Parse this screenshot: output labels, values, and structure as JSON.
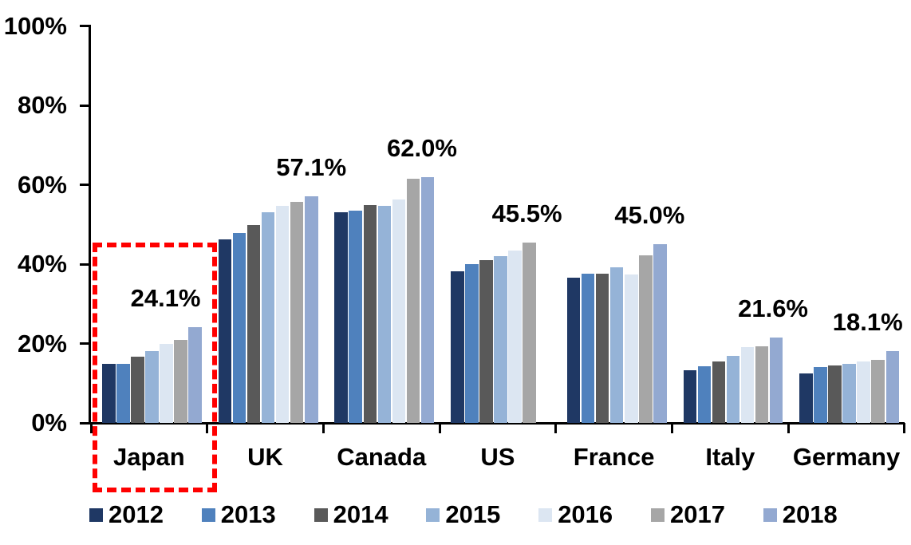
{
  "chart_data": {
    "type": "bar",
    "title": "",
    "categories": [
      "Japan",
      "UK",
      "Canada",
      "US",
      "France",
      "Italy",
      "Germany"
    ],
    "series": [
      {
        "name": "2012",
        "color": "#1F3864",
        "values": [
          14.8,
          46.3,
          53.0,
          38.2,
          36.6,
          13.3,
          12.5
        ]
      },
      {
        "name": "2013",
        "color": "#4F81BD",
        "values": [
          14.9,
          47.8,
          53.4,
          40.0,
          37.6,
          14.2,
          14.0
        ]
      },
      {
        "name": "2014",
        "color": "#595959",
        "values": [
          16.7,
          49.8,
          54.9,
          41.1,
          37.6,
          15.5,
          14.4
        ]
      },
      {
        "name": "2015",
        "color": "#95B3D7",
        "values": [
          18.0,
          53.1,
          54.6,
          42.1,
          39.2,
          16.9,
          14.8
        ]
      },
      {
        "name": "2016",
        "color": "#DCE6F2",
        "values": [
          19.8,
          54.6,
          56.2,
          43.5,
          37.3,
          19.0,
          15.4
        ]
      },
      {
        "name": "2017",
        "color": "#A6A6A6",
        "values": [
          21.0,
          55.6,
          61.6,
          45.5,
          42.3,
          19.2,
          15.9
        ]
      },
      {
        "name": "2018",
        "color": "#93A9D1",
        "values": [
          24.1,
          57.1,
          62.0,
          null,
          45.0,
          21.6,
          18.1
        ]
      }
    ],
    "data_labels": [
      "24.1%",
      "57.1%",
      "62.0%",
      "45.5%",
      "45.0%",
      "21.6%",
      "18.1%"
    ],
    "y_ticks": [
      "0%",
      "20%",
      "40%",
      "60%",
      "80%",
      "100%"
    ],
    "ylim": [
      0,
      100
    ],
    "grid": false,
    "legend_position": "bottom",
    "highlight": {
      "category": "Japan",
      "box_color": "#FF0000"
    },
    "axis_color": "#000000",
    "text_color": "#000000"
  }
}
